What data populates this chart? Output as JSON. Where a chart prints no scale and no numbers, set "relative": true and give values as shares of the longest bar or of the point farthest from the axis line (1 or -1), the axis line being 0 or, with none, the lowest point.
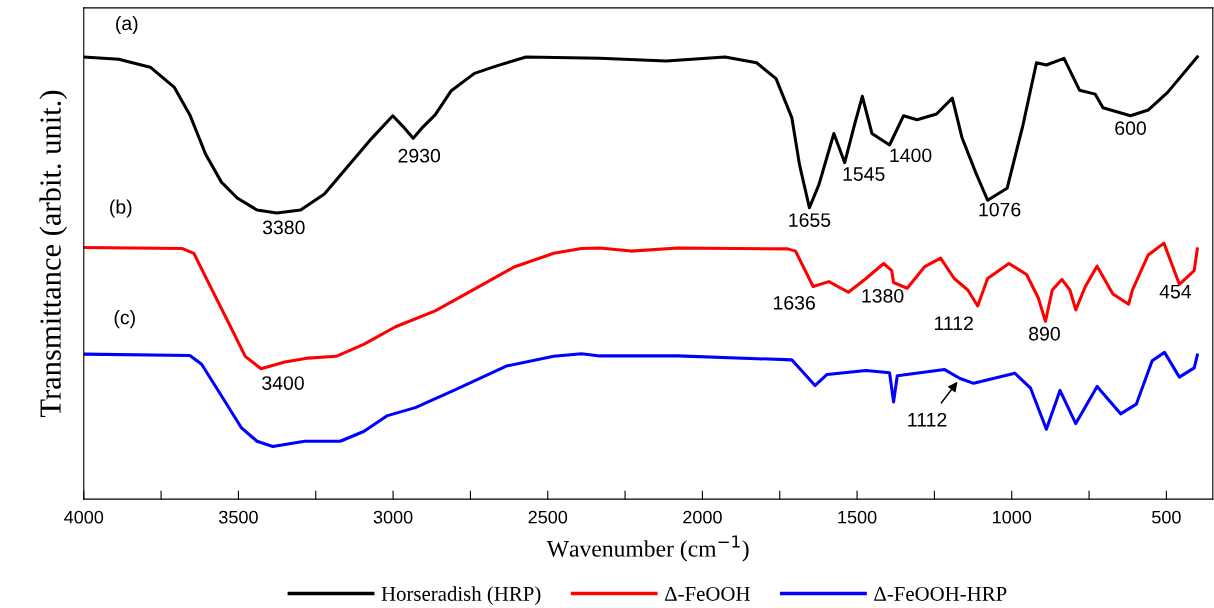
{
  "chart_data": {
    "type": "line",
    "relative": true,
    "xlabel": "Wavenumber (cm$^{−1}$)",
    "ylabel": "Transmittance (arbit. unit.)",
    "xlim": [
      4000,
      350
    ],
    "xticks": [
      4000,
      {
        "value": 3750,
        "label": null
      },
      3500,
      {
        "value": 3250,
        "label": null
      },
      3000,
      {
        "value": 2750,
        "label": null
      },
      2500,
      {
        "value": 2250,
        "label": null
      },
      2000,
      {
        "value": 1750,
        "label": null
      },
      1500,
      {
        "value": 1250,
        "label": null
      },
      1000,
      {
        "value": 750,
        "label": null
      },
      500
    ],
    "tick_labels": "x",
    "grid": false,
    "legend": "bottom",
    "marker": "none",
    "line_style": "solid",
    "series": [
      {
        "name": "Horseradish (HRP)",
        "color": "#000000",
        "x": [
          4000,
          3887,
          3785,
          3708,
          3657,
          3606,
          3555,
          3504,
          3440,
          3376,
          3299,
          3222,
          3146,
          3069,
          3001,
          2967,
          2935,
          2903,
          2864,
          2813,
          2737,
          2660,
          2570,
          2332,
          2117,
          1927,
          1825,
          1762,
          1711,
          1686,
          1654,
          1623,
          1575,
          1540,
          1509,
          1483,
          1452,
          1395,
          1350,
          1306,
          1243,
          1192,
          1161,
          1116,
          1078,
          1015,
          964,
          920,
          888,
          831,
          781,
          730,
          705,
          616,
          559,
          496,
          400
        ],
        "values": [
          1.0,
          0.995,
          0.977,
          0.932,
          0.869,
          0.78,
          0.717,
          0.681,
          0.654,
          0.647,
          0.654,
          0.69,
          0.753,
          0.816,
          0.867,
          0.842,
          0.816,
          0.842,
          0.869,
          0.923,
          0.963,
          0.981,
          1.0,
          0.997,
          0.991,
          1.0,
          0.987,
          0.951,
          0.863,
          0.756,
          0.659,
          0.712,
          0.827,
          0.761,
          0.845,
          0.911,
          0.827,
          0.801,
          0.867,
          0.858,
          0.871,
          0.907,
          0.818,
          0.738,
          0.676,
          0.703,
          0.845,
          0.987,
          0.982,
          0.997,
          0.925,
          0.916,
          0.885,
          0.867,
          0.88,
          0.92,
          1.0
        ]
      },
      {
        "name": "Δ-FeOOH",
        "color": "#ff0000",
        "x": [
          4000,
          3683,
          3644,
          3593,
          3529,
          3478,
          3427,
          3350,
          3274,
          3184,
          3095,
          2992,
          2864,
          2737,
          2609,
          2481,
          2391,
          2332,
          2231,
          2079,
          1724,
          1699,
          1642,
          1591,
          1528,
          1471,
          1414,
          1388,
          1382,
          1338,
          1281,
          1230,
          1186,
          1142,
          1110,
          1078,
          1009,
          952,
          914,
          891,
          869,
          838,
          812,
          793,
          762,
          724,
          673,
          622,
          610,
          559,
          508,
          458,
          410,
          400
        ],
        "values": [
          0.569,
          0.567,
          0.556,
          0.484,
          0.395,
          0.323,
          0.295,
          0.31,
          0.319,
          0.323,
          0.35,
          0.39,
          0.426,
          0.475,
          0.525,
          0.556,
          0.567,
          0.568,
          0.561,
          0.568,
          0.566,
          0.561,
          0.481,
          0.492,
          0.468,
          0.499,
          0.533,
          0.517,
          0.49,
          0.477,
          0.526,
          0.545,
          0.499,
          0.473,
          0.437,
          0.499,
          0.533,
          0.508,
          0.455,
          0.402,
          0.473,
          0.497,
          0.473,
          0.428,
          0.481,
          0.527,
          0.464,
          0.441,
          0.473,
          0.552,
          0.579,
          0.486,
          0.517,
          0.566
        ]
      },
      {
        "name": "Δ-FeOOH-HRP",
        "color": "#0000ff",
        "x": [
          4000,
          3657,
          3619,
          3555,
          3491,
          3440,
          3389,
          3286,
          3171,
          3095,
          3018,
          2928,
          2800,
          2634,
          2481,
          2391,
          2332,
          2079,
          1711,
          1673,
          1636,
          1597,
          1471,
          1395,
          1382,
          1370,
          1217,
          1167,
          1123,
          990,
          939,
          888,
          844,
          793,
          724,
          648,
          597,
          546,
          506,
          458,
          410,
          400
        ],
        "values": [
          0.328,
          0.325,
          0.305,
          0.234,
          0.162,
          0.131,
          0.119,
          0.131,
          0.131,
          0.153,
          0.189,
          0.207,
          0.247,
          0.301,
          0.323,
          0.329,
          0.324,
          0.324,
          0.315,
          0.286,
          0.257,
          0.282,
          0.291,
          0.286,
          0.22,
          0.279,
          0.293,
          0.273,
          0.262,
          0.285,
          0.251,
          0.158,
          0.246,
          0.171,
          0.255,
          0.193,
          0.215,
          0.313,
          0.332,
          0.276,
          0.297,
          0.326
        ]
      }
    ],
    "annotations": [
      "(a)",
      "(b)",
      "(c)",
      {
        "text": "3380",
        "x": 3376,
        "y": 0.647
      },
      {
        "text": "2930",
        "x": 2935,
        "y": 0.816
      },
      {
        "text": "1655",
        "x": 1654,
        "y": 0.659
      },
      {
        "text": "1545",
        "x": 1540,
        "y": 0.761
      },
      {
        "text": "1400",
        "x": 1395,
        "y": 0.801
      },
      {
        "text": "1076",
        "x": 1078,
        "y": 0.676
      },
      {
        "text": "600",
        "x": 616,
        "y": 0.867
      },
      {
        "text": "3400",
        "x": 3427,
        "y": 0.295
      },
      {
        "text": "1636",
        "x": 1642,
        "y": 0.481
      },
      {
        "text": "1380",
        "x": 1382,
        "y": 0.49
      },
      {
        "text": "1112",
        "x": 1110,
        "y": 0.437
      },
      {
        "text": "890",
        "x": 891,
        "y": 0.402
      },
      {
        "text": "454",
        "x": 458,
        "y": 0.486
      },
      {
        "text": "1112",
        "x": 1167,
        "y": 0.273
      }
    ]
  }
}
